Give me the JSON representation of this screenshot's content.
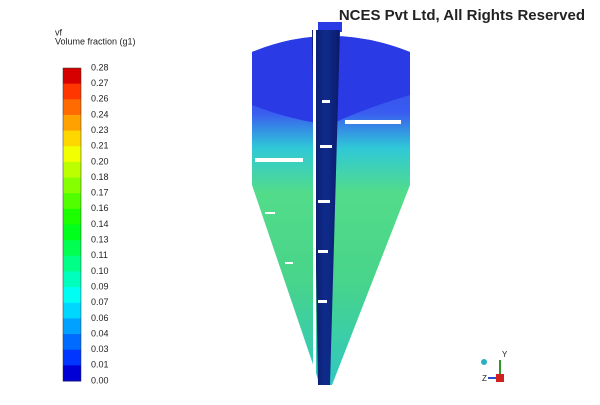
{
  "watermark": "NCES Pvt Ltd, All Rights Reserved",
  "colorbar": {
    "variable": "vf",
    "title": "Volume fraction (g1)",
    "labels": [
      "0.28",
      "0.27",
      "0.26",
      "0.24",
      "0.23",
      "0.21",
      "0.20",
      "0.18",
      "0.17",
      "0.16",
      "0.14",
      "0.13",
      "0.11",
      "0.10",
      "0.09",
      "0.07",
      "0.06",
      "0.04",
      "0.03",
      "0.01",
      "0.00"
    ]
  },
  "triad": {
    "horizontal": "Z",
    "vertical": "Y"
  }
}
